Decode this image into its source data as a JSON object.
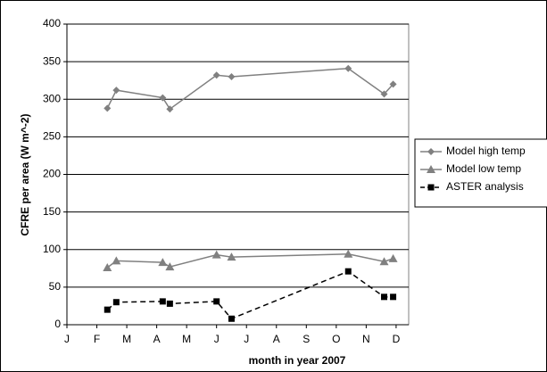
{
  "chart_data": {
    "type": "line",
    "x_label": "month in year 2007",
    "y_label": "CFRE per area (W m^-2)",
    "x": [
      2.35,
      2.65,
      4.2,
      4.44,
      6.0,
      6.5,
      10.4,
      11.6,
      11.9
    ],
    "series": [
      {
        "name": "Model high temp",
        "color": "#808080",
        "marker": "diamond",
        "dashed": false,
        "values": [
          288,
          312,
          302,
          287,
          332,
          330,
          341,
          307,
          320
        ]
      },
      {
        "name": "Model low temp",
        "color": "#808080",
        "marker": "triangle",
        "dashed": false,
        "values": [
          76,
          85,
          83,
          77,
          93,
          90,
          94,
          84,
          88
        ]
      },
      {
        "name": "ASTER analysis",
        "color": "#000000",
        "marker": "square",
        "dashed": true,
        "values": [
          20,
          30,
          31,
          28,
          31,
          8,
          71,
          37,
          37
        ]
      }
    ],
    "xlim": [
      1,
      12.42
    ],
    "xticks": [
      {
        "value": 1,
        "label": "J"
      },
      {
        "value": 2,
        "label": "F"
      },
      {
        "value": 3,
        "label": "M"
      },
      {
        "value": 4,
        "label": "A"
      },
      {
        "value": 5,
        "label": "M"
      },
      {
        "value": 6,
        "label": "J"
      },
      {
        "value": 7,
        "label": "J"
      },
      {
        "value": 8,
        "label": "A"
      },
      {
        "value": 9,
        "label": "S"
      },
      {
        "value": 10,
        "label": "O"
      },
      {
        "value": 11,
        "label": "N"
      },
      {
        "value": 12,
        "label": "D"
      }
    ],
    "ylim": [
      0,
      400
    ],
    "yticks": [
      0,
      50,
      100,
      150,
      200,
      250,
      300,
      350,
      400
    ],
    "grid": true,
    "legend": "right"
  }
}
